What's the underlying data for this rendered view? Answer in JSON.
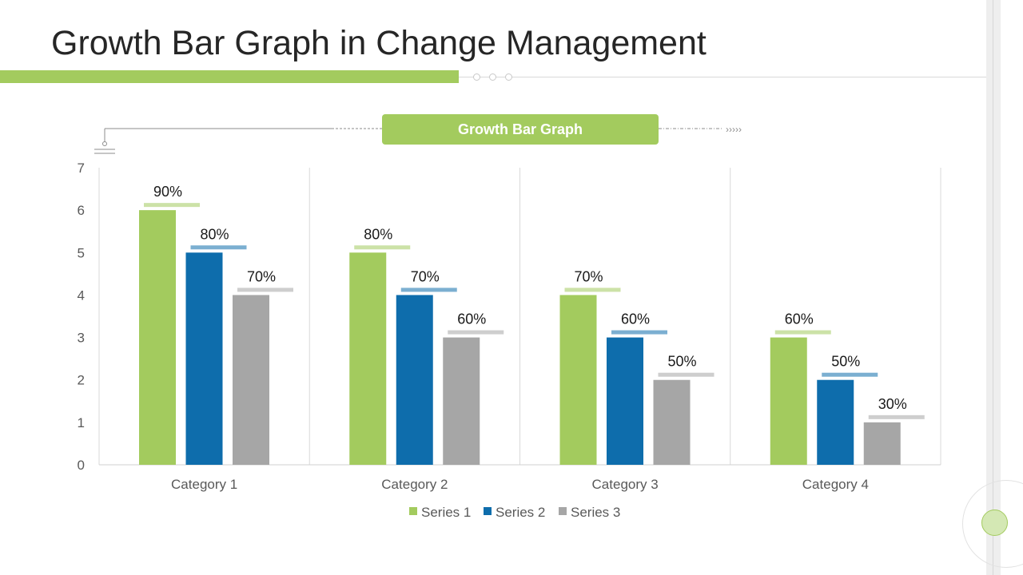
{
  "title": "Growth Bar Graph in Change Management",
  "chart_badge": "Growth Bar Graph",
  "colors": {
    "accent": "#a3cb5e",
    "series1": "#a3cb5e",
    "series2": "#0e6dac",
    "series3": "#a6a6a6"
  },
  "chart_data": {
    "type": "bar",
    "title": "Growth Bar Graph",
    "categories": [
      "Category 1",
      "Category 2",
      "Category 3",
      "Category 4"
    ],
    "series": [
      {
        "name": "Series 1",
        "values": [
          6,
          5,
          4,
          3
        ],
        "labels": [
          "90%",
          "80%",
          "70%",
          "60%"
        ]
      },
      {
        "name": "Series 2",
        "values": [
          5,
          4,
          3,
          2
        ],
        "labels": [
          "80%",
          "70%",
          "60%",
          "50%"
        ]
      },
      {
        "name": "Series 3",
        "values": [
          4,
          3,
          2,
          1
        ],
        "labels": [
          "70%",
          "60%",
          "50%",
          "30%"
        ]
      }
    ],
    "ylim": [
      0,
      7
    ],
    "yticks": [
      0,
      1,
      2,
      3,
      4,
      5,
      6,
      7
    ],
    "xlabel": "",
    "ylabel": "",
    "legend": "bottom"
  }
}
